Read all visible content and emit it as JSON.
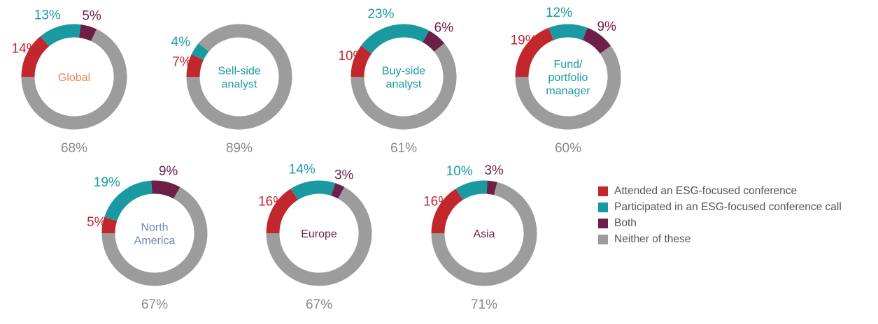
{
  "colors": {
    "attended": "#c1272d",
    "participated": "#1a9aa0",
    "both": "#6d1f48",
    "neither": "#9c9c9c",
    "neither_label": "#8a8a8a"
  },
  "legend": [
    {
      "key": "attended",
      "label": "Attended an ESG-focused conference",
      "color": "#c1272d"
    },
    {
      "key": "participated",
      "label": "Participated in an ESG-focused conference call",
      "color": "#1a9aa0"
    },
    {
      "key": "both",
      "label": "Both",
      "color": "#6d1f48"
    },
    {
      "key": "neither",
      "label": "Neither of these",
      "color": "#9c9c9c"
    }
  ],
  "chart_data": [
    {
      "type": "pie",
      "title": [
        "Global"
      ],
      "title_color": "#e8875a",
      "values": {
        "attended": 14,
        "participated": 13,
        "both": 5,
        "neither": 68
      },
      "labels": {
        "attended": "14%",
        "participated": "13%",
        "both": "5%",
        "neither": "68%"
      }
    },
    {
      "type": "pie",
      "title": [
        "Sell-side",
        "analyst"
      ],
      "title_color": "#1a9aa0",
      "values": {
        "attended": 7,
        "participated": 4,
        "both": 0,
        "neither": 89
      },
      "labels": {
        "attended": "7%",
        "participated": "4%",
        "neither": "89%"
      }
    },
    {
      "type": "pie",
      "title": [
        "Buy-side",
        "analyst"
      ],
      "title_color": "#1a9aa0",
      "values": {
        "attended": 10,
        "participated": 23,
        "both": 6,
        "neither": 61
      },
      "labels": {
        "attended": "10%",
        "participated": "23%",
        "both": "6%",
        "neither": "61%"
      }
    },
    {
      "type": "pie",
      "title": [
        "Fund/",
        "portfolio",
        "manager"
      ],
      "title_color": "#1a9aa0",
      "values": {
        "attended": 19,
        "participated": 12,
        "both": 9,
        "neither": 60
      },
      "labels": {
        "attended": "19%",
        "participated": "12%",
        "both": "9%",
        "neither": "60%"
      }
    },
    {
      "type": "pie",
      "title": [
        "North",
        "America"
      ],
      "title_color": "#6f86b8",
      "values": {
        "attended": 5,
        "participated": 19,
        "both": 9,
        "neither": 67
      },
      "labels": {
        "attended": "5%",
        "participated": "19%",
        "both": "9%",
        "neither": "67%"
      }
    },
    {
      "type": "pie",
      "title": [
        "Europe"
      ],
      "title_color": "#6d1f48",
      "values": {
        "attended": 16,
        "participated": 14,
        "both": 3,
        "neither": 67
      },
      "labels": {
        "attended": "16%",
        "participated": "14%",
        "both": "3%",
        "neither": "67%"
      }
    },
    {
      "type": "pie",
      "title": [
        "Asia"
      ],
      "title_color": "#6d1f48",
      "values": {
        "attended": 16,
        "participated": 10,
        "both": 3,
        "neither": 71
      },
      "labels": {
        "attended": "16%",
        "participated": "10%",
        "both": "3%",
        "neither": "71%"
      }
    }
  ]
}
